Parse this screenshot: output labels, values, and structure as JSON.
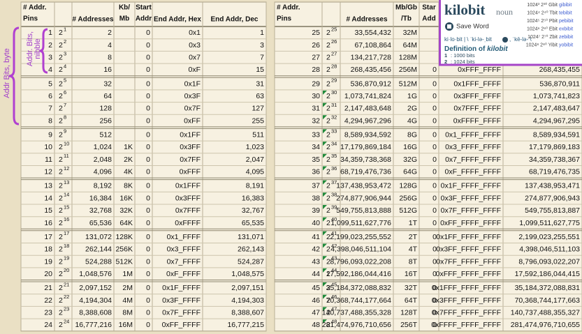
{
  "annotations": {
    "byte": "Addr Bits, byte",
    "nibble": [
      "Addr. Bits,",
      "nibble"
    ]
  },
  "tables": [
    {
      "headers": [
        [
          "# Addr.",
          "Pins"
        ],
        null,
        [
          "# Addresses"
        ],
        [
          "Kb/",
          "Mb"
        ],
        [
          "Start",
          "Addr"
        ],
        [
          "End Addr, Hex"
        ],
        [
          "End Addr, Dec"
        ]
      ],
      "rows": [
        [
          1,
          2,
          1,
          "2",
          null,
          0,
          "0x1",
          "1"
        ],
        [
          2,
          2,
          2,
          "4",
          null,
          0,
          "0x3",
          "3"
        ],
        [
          3,
          2,
          3,
          "8",
          null,
          0,
          "0x7",
          "7"
        ],
        [
          4,
          2,
          4,
          "16",
          null,
          0,
          "0xF",
          "15"
        ],
        [
          5,
          2,
          5,
          "32",
          null,
          0,
          "0x1F",
          "31"
        ],
        [
          6,
          2,
          6,
          "64",
          null,
          0,
          "0x3F",
          "63"
        ],
        [
          7,
          2,
          7,
          "128",
          null,
          0,
          "0x7F",
          "127"
        ],
        [
          8,
          2,
          8,
          "256",
          null,
          0,
          "0xFF",
          "255"
        ],
        [
          9,
          2,
          9,
          "512",
          null,
          0,
          "0x1FF",
          "511"
        ],
        [
          10,
          2,
          10,
          "1,024",
          "1K",
          0,
          "0x3FF",
          "1,023"
        ],
        [
          11,
          2,
          11,
          "2,048",
          "2K",
          0,
          "0x7FF",
          "2,047"
        ],
        [
          12,
          2,
          12,
          "4,096",
          "4K",
          0,
          "0xFFF",
          "4,095"
        ],
        [
          13,
          2,
          13,
          "8,192",
          "8K",
          0,
          "0x1FFF",
          "8,191"
        ],
        [
          14,
          2,
          14,
          "16,384",
          "16K",
          0,
          "0x3FFF",
          "16,383"
        ],
        [
          15,
          2,
          15,
          "32,768",
          "32K",
          0,
          "0x7FFF",
          "32,767"
        ],
        [
          16,
          2,
          16,
          "65,536",
          "64K",
          0,
          "0xFFFF",
          "65,535"
        ],
        [
          17,
          2,
          17,
          "131,072",
          "128K",
          0,
          "0x1_FFFF",
          "131,071"
        ],
        [
          18,
          2,
          18,
          "262,144",
          "256K",
          0,
          "0x3_FFFF",
          "262,143"
        ],
        [
          19,
          2,
          19,
          "524,288",
          "512K",
          0,
          "0x7_FFFF",
          "524,287"
        ],
        [
          20,
          2,
          20,
          "1,048,576",
          "1M",
          0,
          "0xF_FFFF",
          "1,048,575"
        ],
        [
          21,
          2,
          21,
          "2,097,152",
          "2M",
          0,
          "0x1F_FFFF",
          "2,097,151"
        ],
        [
          22,
          2,
          22,
          "4,194,304",
          "4M",
          0,
          "0x3F_FFFF",
          "4,194,303"
        ],
        [
          23,
          2,
          23,
          "8,388,608",
          "8M",
          0,
          "0x7F_FFFF",
          "8,388,607"
        ],
        [
          24,
          2,
          24,
          "16,777,216",
          "16M",
          0,
          "0xFF_FFFF",
          "16,777,215"
        ]
      ]
    },
    {
      "headers": [
        [
          "# Addr.",
          "Pins"
        ],
        null,
        [
          "# Addresses"
        ],
        [
          "Mb/Gb",
          "/Tb"
        ],
        [
          "Star",
          "Add"
        ],
        null,
        null
      ],
      "rows": [
        [
          25,
          2,
          25,
          "33,554,432",
          "32M",
          null,
          null,
          null
        ],
        [
          26,
          2,
          26,
          "67,108,864",
          "64M",
          null,
          null,
          null
        ],
        [
          27,
          2,
          27,
          "134,217,728",
          "128M",
          null,
          null,
          null
        ],
        [
          28,
          2,
          28,
          "268,435,456",
          "256M",
          0,
          "0xFFF_FFFF",
          "268,435,455"
        ],
        [
          29,
          2,
          29,
          "536,870,912",
          "512M",
          0,
          "0x1FFF_FFFF",
          "536,870,911"
        ],
        [
          30,
          2,
          30,
          "1,073,741,824",
          "1G",
          0,
          "0x3FFF_FFFF",
          "1,073,741,823"
        ],
        [
          31,
          2,
          31,
          "2,147,483,648",
          "2G",
          0,
          "0x7FFF_FFFF",
          "2,147,483,647"
        ],
        [
          32,
          2,
          32,
          "4,294,967,296",
          "4G",
          0,
          "0xFFFF_FFFF",
          "4,294,967,295"
        ],
        [
          33,
          2,
          33,
          "8,589,934,592",
          "8G",
          0,
          "0x1_FFFF_FFFF",
          "8,589,934,591"
        ],
        [
          34,
          2,
          34,
          "17,179,869,184",
          "16G",
          0,
          "0x3_FFFF_FFFF",
          "17,179,869,183"
        ],
        [
          35,
          2,
          35,
          "34,359,738,368",
          "32G",
          0,
          "0x7_FFFF_FFFF",
          "34,359,738,367"
        ],
        [
          36,
          2,
          36,
          "68,719,476,736",
          "64G",
          0,
          "0xF_FFFF_FFFF",
          "68,719,476,735"
        ],
        [
          37,
          2,
          37,
          "137,438,953,472",
          "128G",
          0,
          "0x1F_FFFF_FFFF",
          "137,438,953,471"
        ],
        [
          38,
          2,
          38,
          "274,877,906,944",
          "256G",
          0,
          "0x3F_FFFF_FFFF",
          "274,877,906,943"
        ],
        [
          39,
          2,
          39,
          "549,755,813,888",
          "512G",
          0,
          "0x7F_FFFF_FFFF",
          "549,755,813,887"
        ],
        [
          40,
          2,
          40,
          "1,099,511,627,776",
          "1T",
          0,
          "0xFF_FFFF_FFFF",
          "1,099,511,627,775"
        ],
        [
          41,
          2,
          41,
          "2,199,023,255,552",
          "2T",
          0,
          "0x1FF_FFFF_FFFF",
          "2,199,023,255,551"
        ],
        [
          42,
          2,
          42,
          "4,398,046,511,104",
          "4T",
          0,
          "0x3FF_FFFF_FFFF",
          "4,398,046,511,103"
        ],
        [
          43,
          2,
          43,
          "8,796,093,022,208",
          "8T",
          0,
          "0x7FF_FFFF_FFFF",
          "8,796,093,022,207"
        ],
        [
          44,
          2,
          44,
          "17,592,186,044,416",
          "16T",
          0,
          "0xFFF_FFFF_FFFF",
          "17,592,186,044,415"
        ],
        [
          45,
          2,
          45,
          "35,184,372,088,832",
          "32T",
          0,
          "0x1FFF_FFFF_FFFF",
          "35,184,372,088,831"
        ],
        [
          46,
          2,
          46,
          "70,368,744,177,664",
          "64T",
          0,
          "0x3FFF_FFFF_FFFF",
          "70,368,744,177,663"
        ],
        [
          47,
          2,
          47,
          "140,737,488,355,328",
          "128T",
          0,
          "0x7FFF_FFFF_FFFF",
          "140,737,488,355,327"
        ],
        [
          48,
          2,
          48,
          "281,474,976,710,656",
          "256T",
          0,
          "0xFFFF_FFFF_FFFF",
          "281,474,976,710,655"
        ]
      ]
    }
  ],
  "popup": {
    "word": "kilobit",
    "part_of_speech": "noun",
    "save": "Save Word",
    "pronunciation": [
      "ki·lo·bit | \\ ˈki-lə-ˌbit",
      ", ˈkē-lə- \\"
    ],
    "definition_label": "Definition of",
    "definition_word": "kilobit",
    "senses": [
      {
        "num": 1,
        "text": ": 1000 bits"
      },
      {
        "num": 2,
        "text": ": 1024 bits"
      }
    ],
    "units": [
      [
        "1024³ 2³⁰ Gbit",
        "gibibit"
      ],
      [
        "1024⁴ 2⁴⁰ Tbit",
        "tebibit"
      ],
      [
        "1024⁵ 2⁵⁰ Pbit",
        "pebibit"
      ],
      [
        "1024⁶ 2⁶⁰ Ebit",
        "exbibit"
      ],
      [
        "1024⁷ 2⁷⁰ Zbit",
        "zebibit"
      ],
      [
        "1024⁸ 2⁸⁰ Yibit",
        "yobibit"
      ]
    ]
  }
}
